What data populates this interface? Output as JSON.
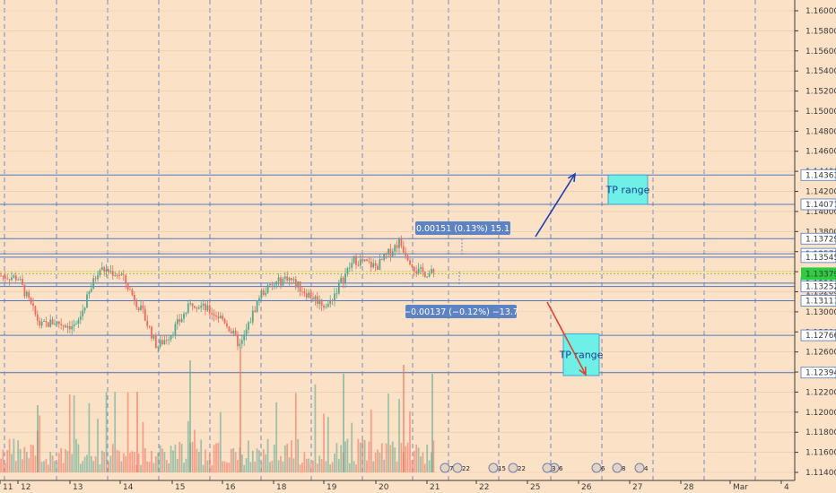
{
  "chart_data": {
    "type": "candlestick",
    "title": "",
    "x_ticks": [
      "11",
      "12",
      "13",
      "14",
      "15",
      "16",
      "18",
      "19",
      "20",
      "21",
      "22",
      "25",
      "26",
      "27",
      "28",
      "Mar",
      "4"
    ],
    "y_ticks": [
      "1.16000",
      "1.15800",
      "1.15600",
      "1.15400",
      "1.15200",
      "1.15000",
      "1.14800",
      "1.14600",
      "1.14400",
      "1.14200",
      "1.14000",
      "1.13800",
      "1.13600",
      "1.13400",
      "1.13200",
      "1.13000",
      "1.12800",
      "1.12600",
      "1.12400",
      "1.12200",
      "1.12000",
      "1.11800",
      "1.11600",
      "1.11400"
    ],
    "ylim": [
      1.113,
      1.161
    ],
    "horizontal_levels": [
      {
        "label": "1.14363",
        "value": 1.14363
      },
      {
        "label": "1.14071",
        "value": 1.14071
      },
      {
        "label": "1.13729",
        "value": 1.13729
      },
      {
        "label": "1.13578",
        "value": 1.13578
      },
      {
        "label": "1.13545",
        "value": 1.13545
      },
      {
        "label": "1.13286",
        "value": 1.13286
      },
      {
        "label": "1.13252",
        "value": 1.13252
      },
      {
        "label": "1.13111",
        "value": 1.13111
      },
      {
        "label": "1.12766",
        "value": 1.12766
      },
      {
        "label": "1.12394",
        "value": 1.12394
      }
    ],
    "current_price": {
      "label": "1.13379",
      "value": 1.13379
    },
    "measure_up": {
      "label": "0.00151 (0.13%) 15.1",
      "value": 0.00151
    },
    "measure_down": {
      "label": "−0.00137 (−0.12%) −13.7",
      "value": -0.00137
    },
    "tp_up": {
      "label": "TP range",
      "low": 1.14071,
      "high": 1.14363
    },
    "tp_down": {
      "label": "TP range",
      "low": 1.12394,
      "high": 1.12766
    },
    "event_markers": [
      "7",
      "22",
      "15",
      "22",
      "6",
      "3",
      "6",
      "8",
      "4"
    ],
    "colors": {
      "up": "#53a88f",
      "down": "#f26b5b",
      "level": "#5179c2",
      "box": "#6ff0e6",
      "current": "#2ecc40",
      "label_bg": "#5d83c4"
    }
  }
}
